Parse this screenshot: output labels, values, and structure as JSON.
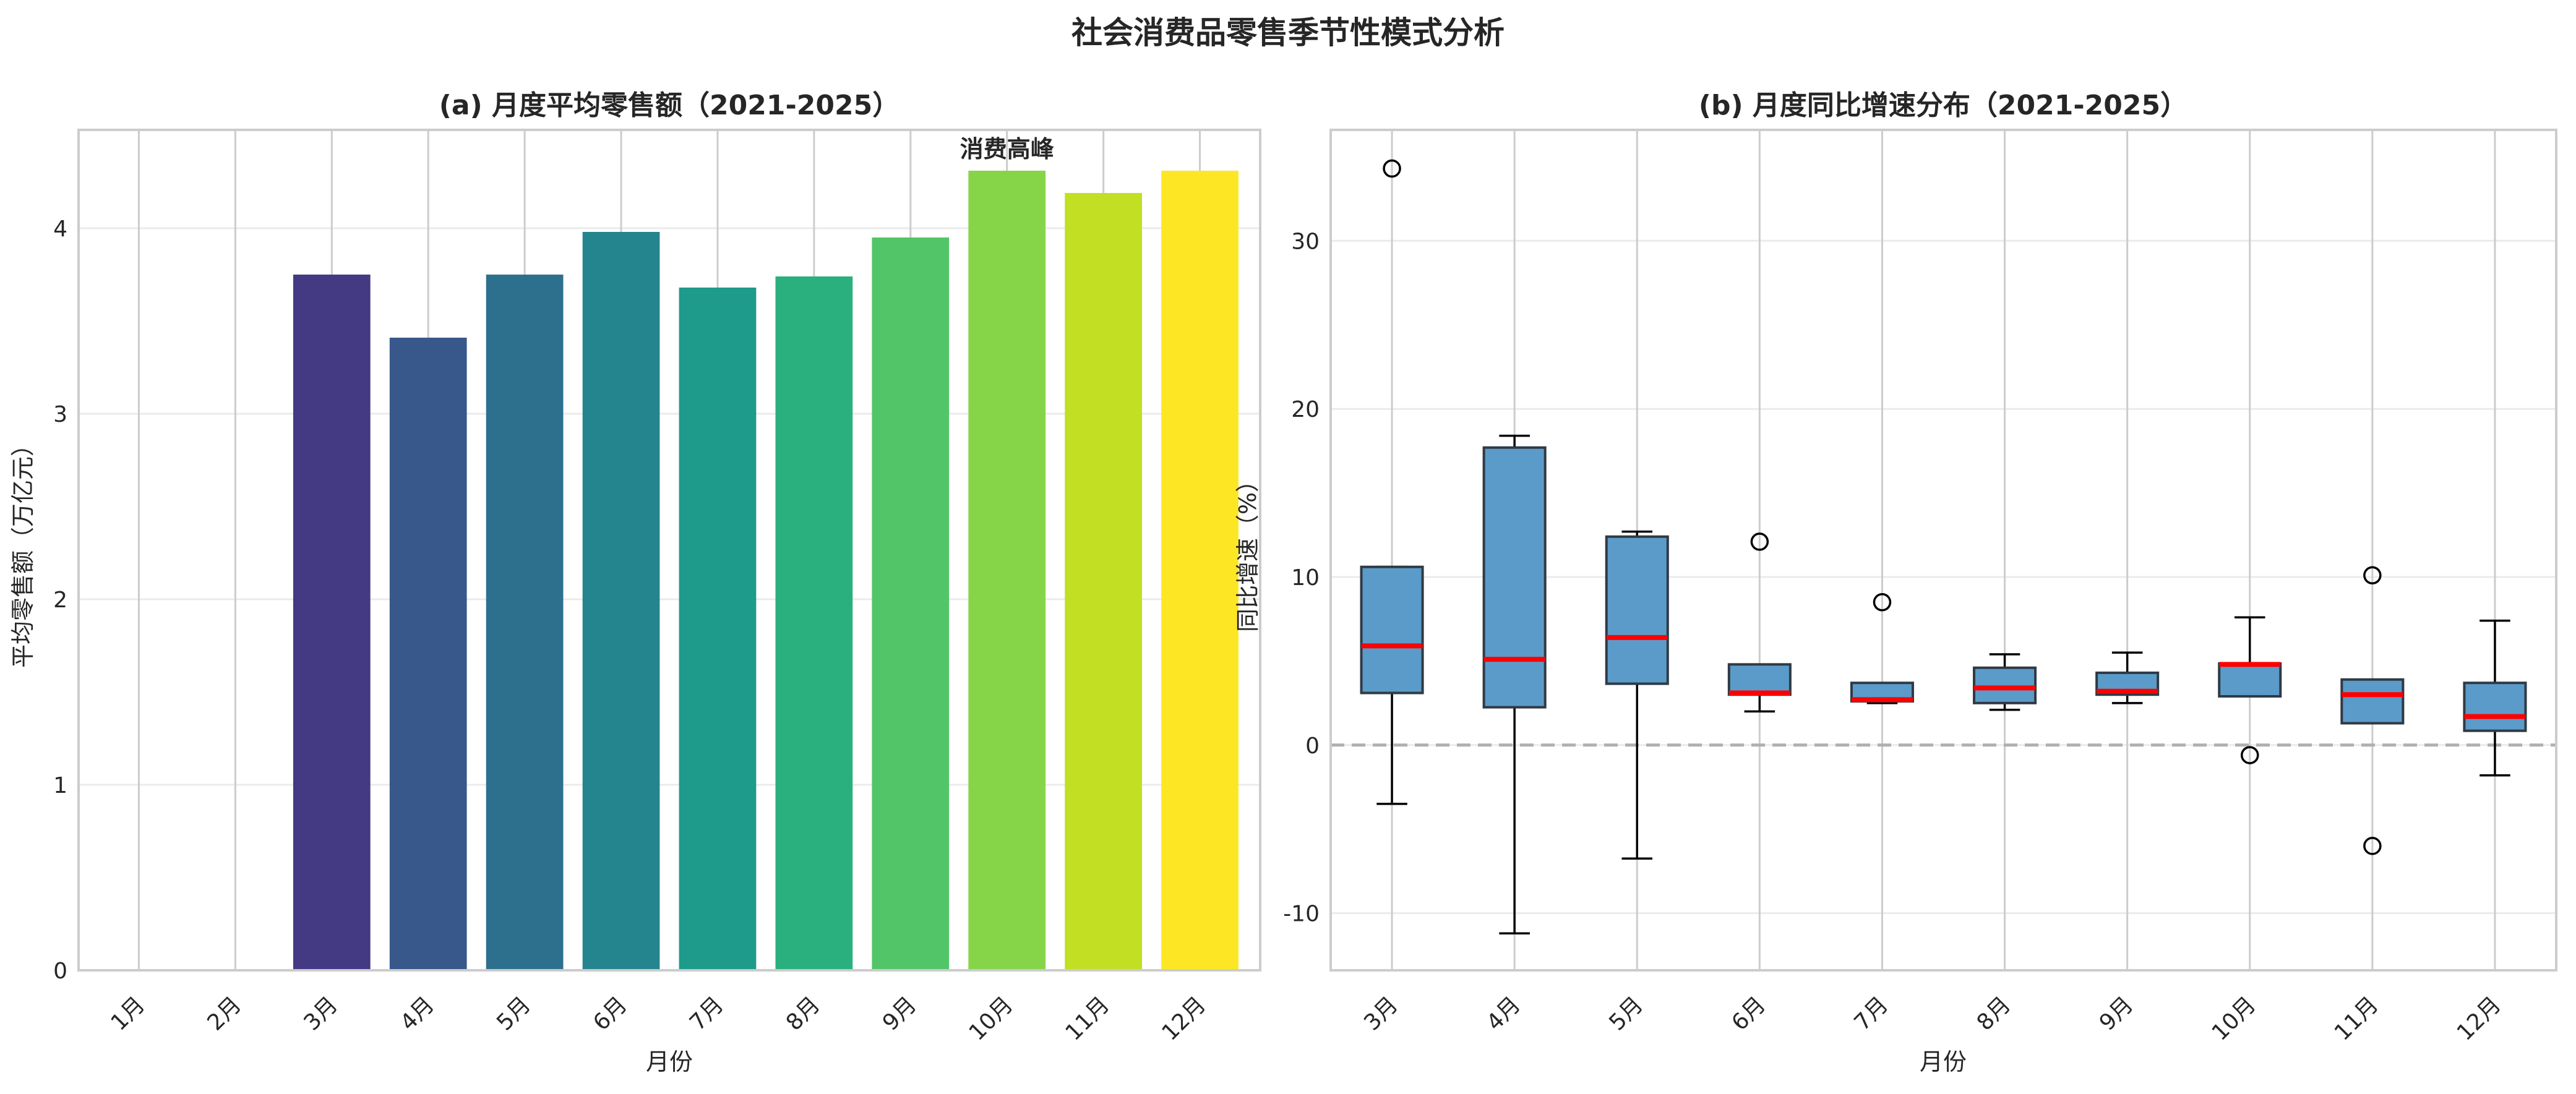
{
  "title": "社会消费品零售季节性模式分析",
  "chart_data": [
    {
      "type": "bar",
      "title": "(a) 月度平均零售额（2021-2025）",
      "xlabel": "月份",
      "ylabel": "平均零售额（万亿元）",
      "categories": [
        "1月",
        "2月",
        "3月",
        "4月",
        "5月",
        "6月",
        "7月",
        "8月",
        "9月",
        "10月",
        "11月",
        "12月"
      ],
      "values": [
        null,
        null,
        3.75,
        3.41,
        3.75,
        3.98,
        3.68,
        3.74,
        3.95,
        4.31,
        4.19,
        4.31
      ],
      "colors": [
        "#481a6c",
        "#472f7d",
        "#443983",
        "#38588c",
        "#2d708e",
        "#25858e",
        "#1e9b8a",
        "#2ab07f",
        "#52c569",
        "#86d549",
        "#c2df23",
        "#fde725"
      ],
      "ylim": [
        0,
        4.53
      ],
      "yticks": [
        0,
        1,
        2,
        3,
        4
      ],
      "annotation": {
        "text": "消费高峰",
        "category": "10月"
      },
      "grid": true
    },
    {
      "type": "box",
      "title": "(b) 月度同比增速分布（2021-2025）",
      "xlabel": "月份",
      "ylabel": "同比增速（%）",
      "categories": [
        "3月",
        "4月",
        "5月",
        "6月",
        "7月",
        "8月",
        "9月",
        "10月",
        "11月",
        "12月"
      ],
      "boxes": [
        {
          "low": -3.5,
          "q1": 3.1,
          "median": 5.9,
          "q3": 10.6,
          "high": 10.6,
          "outliers": [
            34.3
          ]
        },
        {
          "low": -11.2,
          "q1": 2.25,
          "median": 5.1,
          "q3": 17.7,
          "high": 18.4,
          "outliers": []
        },
        {
          "low": -6.75,
          "q1": 3.65,
          "median": 6.4,
          "q3": 12.4,
          "high": 12.7,
          "outliers": []
        },
        {
          "low": 2.0,
          "q1": 3.0,
          "median": 3.1,
          "q3": 4.8,
          "high": 4.8,
          "outliers": [
            12.1
          ]
        },
        {
          "low": 2.5,
          "q1": 2.6,
          "median": 2.7,
          "q3": 3.7,
          "high": 3.7,
          "outliers": [
            8.5
          ]
        },
        {
          "low": 2.1,
          "q1": 2.5,
          "median": 3.4,
          "q3": 4.6,
          "high": 5.4,
          "outliers": []
        },
        {
          "low": 2.5,
          "q1": 3.0,
          "median": 3.2,
          "q3": 4.3,
          "high": 5.5,
          "outliers": []
        },
        {
          "low": 2.9,
          "q1": 2.9,
          "median": 4.8,
          "q3": 4.85,
          "high": 7.6,
          "outliers": [
            -0.6
          ]
        },
        {
          "low": 1.3,
          "q1": 1.3,
          "median": 3.0,
          "q3": 3.9,
          "high": 3.9,
          "outliers": [
            10.1,
            -6.0
          ]
        },
        {
          "low": -1.8,
          "q1": 0.85,
          "median": 1.7,
          "q3": 3.7,
          "high": 7.4,
          "outliers": []
        }
      ],
      "ylim": [
        -13.4,
        36.6
      ],
      "yticks": [
        -10,
        0,
        10,
        20,
        30
      ],
      "reference_line": 0,
      "box_color": "#5b9bc9",
      "median_color": "#ff0000",
      "grid": true
    }
  ]
}
